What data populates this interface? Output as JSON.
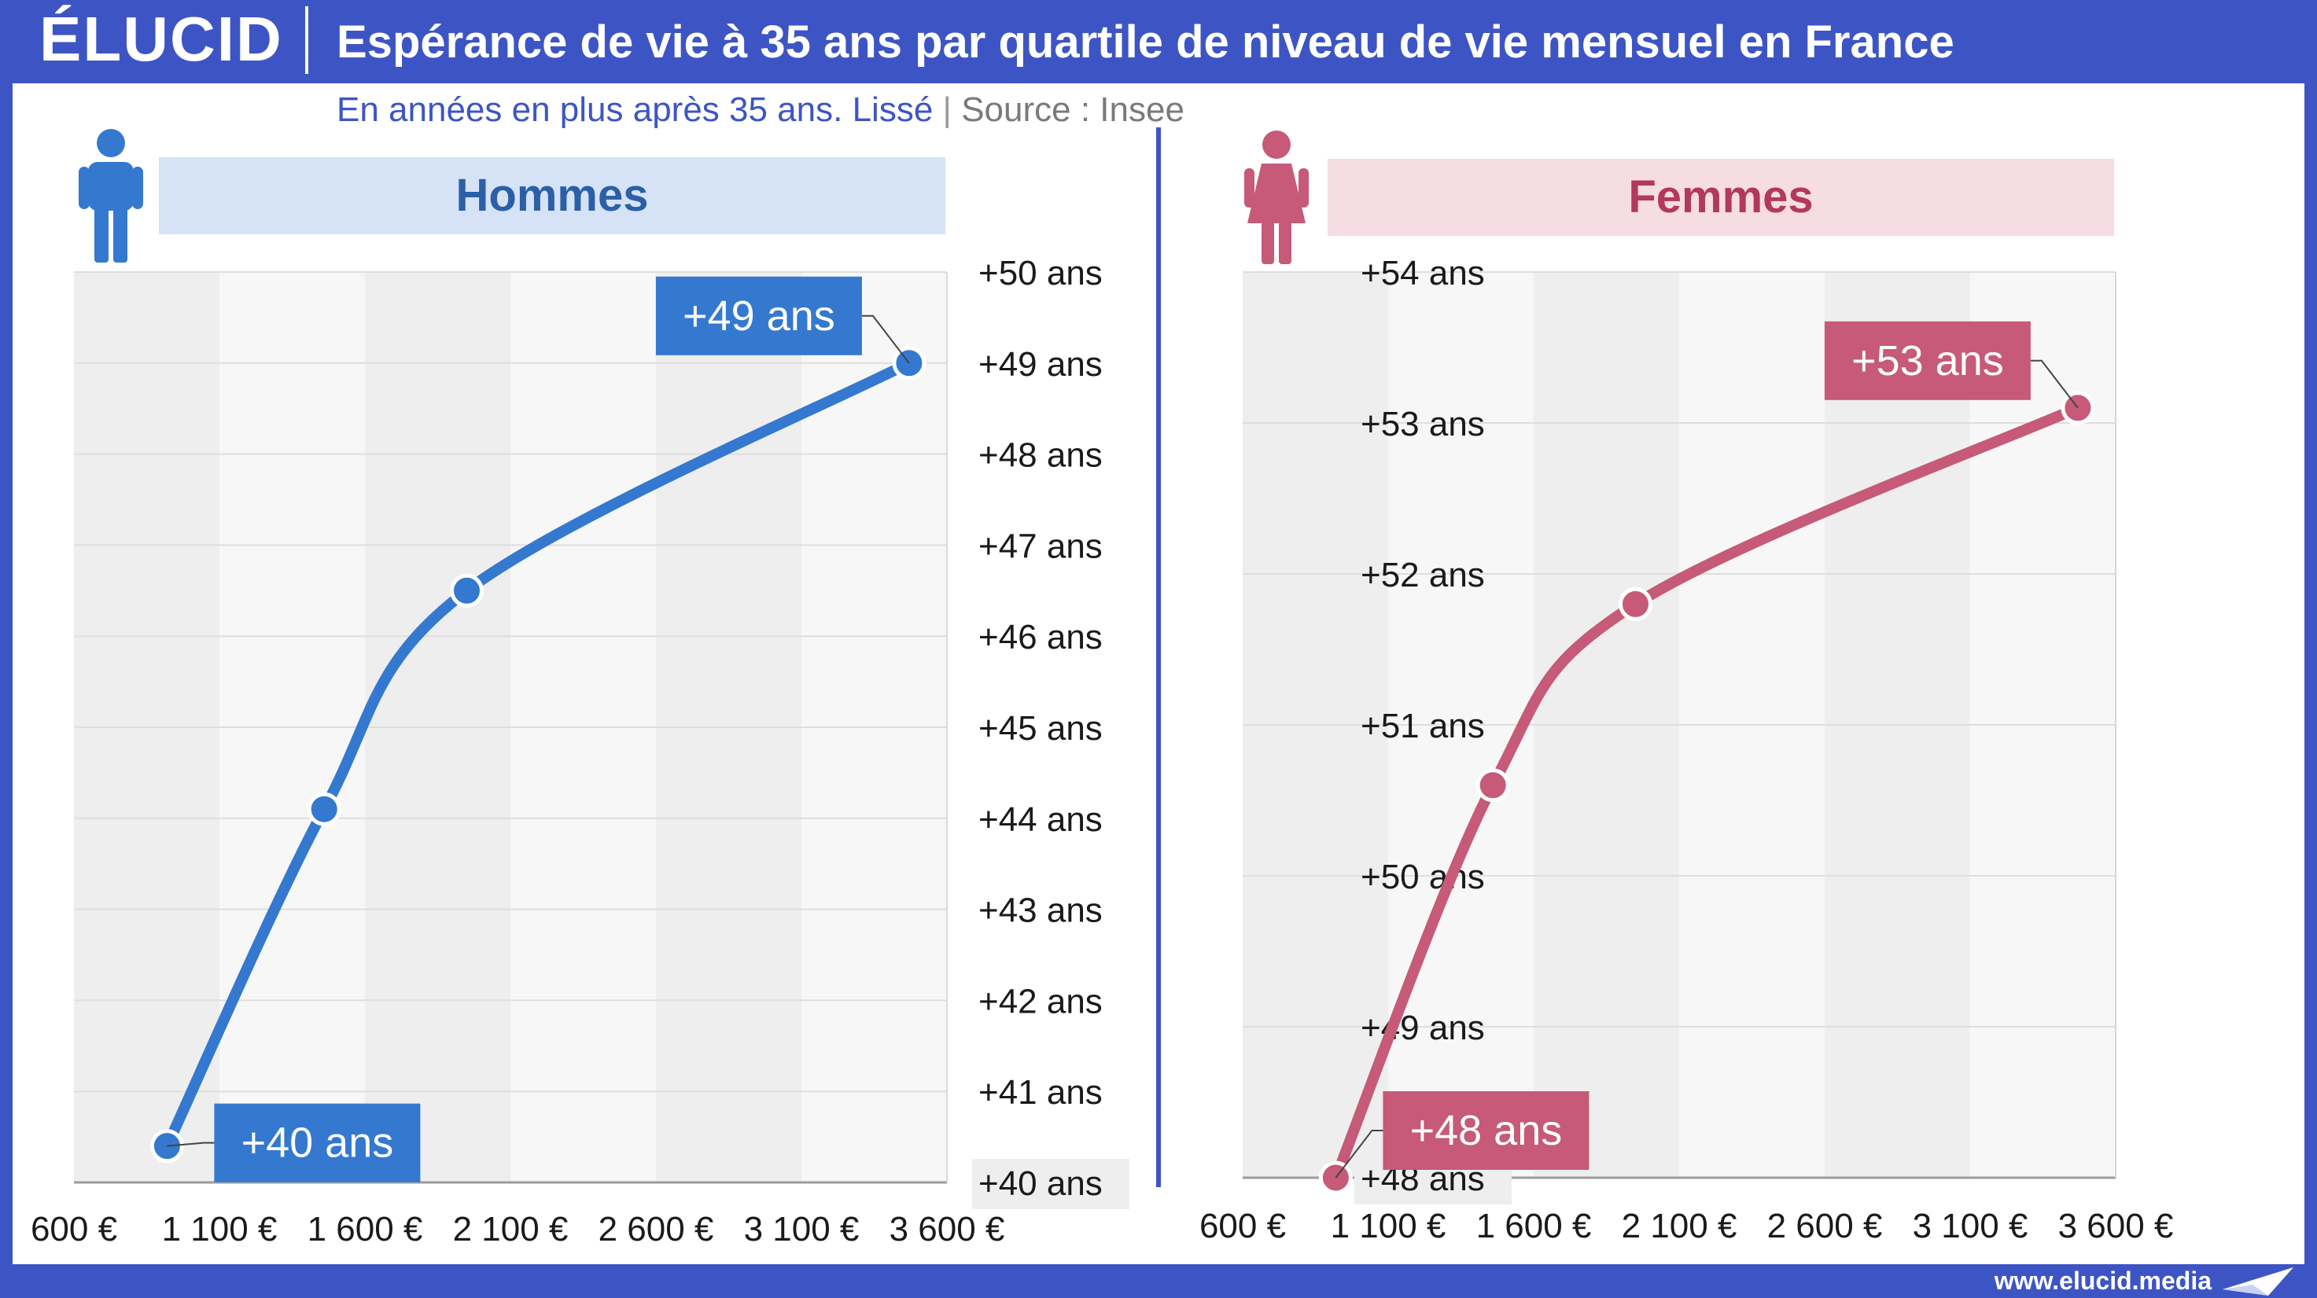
{
  "header": {
    "logo": "ÉLUCID",
    "title": "Espérance de vie à 35 ans par quartile de niveau de vie mensuel en France"
  },
  "subtitle": {
    "main": "En années en plus après 35 ans. Lissé",
    "separator": "|",
    "source": "Source : Insee"
  },
  "footer": {
    "url": "www.elucid.media"
  },
  "colors": {
    "brand": "#3d55c4",
    "men": "#3479cf",
    "women": "#c65a78"
  },
  "icons": {
    "men": "man-icon",
    "women": "woman-icon",
    "footer": "paper-plane-icon"
  },
  "chart_data": [
    {
      "type": "line",
      "panel_label": "Hommes",
      "x_ticks": [
        "600 €",
        "1 100 €",
        "1 600 €",
        "2 100 €",
        "2 600 €",
        "3 100 €",
        "3 600 €"
      ],
      "xlim": [
        600,
        3600
      ],
      "ylim": [
        40,
        50
      ],
      "y_ticks": [
        "+50 ans",
        "+49 ans",
        "+48 ans",
        "+47 ans",
        "+46 ans",
        "+45 ans",
        "+44 ans",
        "+43 ans",
        "+42 ans",
        "+41 ans",
        "+40 ans"
      ],
      "series": [
        {
          "points": [
            {
              "x": 920,
              "y": 40.4
            },
            {
              "x": 1460,
              "y": 44.1
            },
            {
              "x": 1950,
              "y": 46.5
            },
            {
              "x": 3470,
              "y": 49.0
            }
          ]
        }
      ],
      "value_labels": [
        {
          "text": "+40 ans",
          "point_index": 0
        },
        {
          "text": "+49 ans",
          "point_index": 3
        }
      ],
      "grid": true,
      "y_axis_position": "right"
    },
    {
      "type": "line",
      "panel_label": "Femmes",
      "x_ticks": [
        "600 €",
        "1 100 €",
        "1 600 €",
        "2 100 €",
        "2 600 €",
        "3 100 €",
        "3 600 €"
      ],
      "xlim": [
        600,
        3600
      ],
      "ylim": [
        48,
        54
      ],
      "y_ticks": [
        "+54 ans",
        "+53 ans",
        "+52 ans",
        "+51 ans",
        "+50 ans",
        "+49 ans",
        "+48 ans"
      ],
      "series": [
        {
          "points": [
            {
              "x": 920,
              "y": 48.0
            },
            {
              "x": 1460,
              "y": 50.6
            },
            {
              "x": 1950,
              "y": 51.8
            },
            {
              "x": 3470,
              "y": 53.1
            }
          ]
        }
      ],
      "value_labels": [
        {
          "text": "+48 ans",
          "point_index": 0
        },
        {
          "text": "+53 ans",
          "point_index": 3
        }
      ],
      "grid": true,
      "y_axis_position": "right"
    }
  ]
}
